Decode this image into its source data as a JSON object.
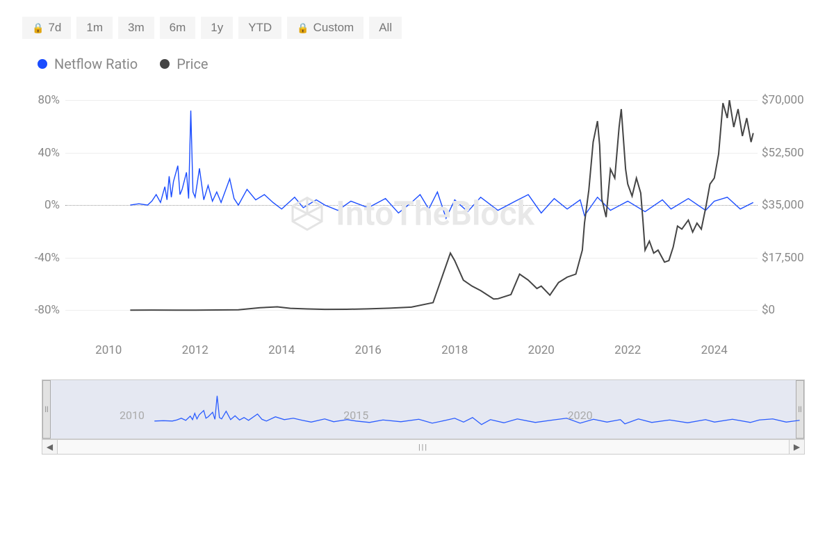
{
  "range_buttons": [
    {
      "label": "7d",
      "locked": true
    },
    {
      "label": "1m",
      "locked": false
    },
    {
      "label": "3m",
      "locked": false
    },
    {
      "label": "6m",
      "locked": false
    },
    {
      "label": "1y",
      "locked": false
    },
    {
      "label": "YTD",
      "locked": false
    },
    {
      "label": "Custom",
      "locked": true
    },
    {
      "label": "All",
      "locked": false
    }
  ],
  "legend": [
    {
      "label": "Netflow Ratio",
      "color": "#1a4cff"
    },
    {
      "label": "Price",
      "color": "#444444"
    }
  ],
  "watermark_text": "IntoTheBlock",
  "chart": {
    "type": "dual-axis-line",
    "background_color": "#ffffff",
    "grid_color": "#eeeeee",
    "zero_line_color": "#999999",
    "x_range": [
      2009,
      2025
    ],
    "x_ticks": [
      2010,
      2012,
      2014,
      2016,
      2018,
      2020,
      2022,
      2024
    ],
    "left_axis": {
      "label_suffix": "%",
      "range": [
        -100,
        80
      ],
      "ticks": [
        -80,
        -40,
        0,
        40,
        80
      ],
      "color": "#888"
    },
    "right_axis": {
      "label_prefix": "$",
      "range": [
        -8750,
        70000
      ],
      "ticks": [
        0,
        17500,
        35000,
        52500,
        70000
      ],
      "color": "#888"
    },
    "series_netflow": {
      "color": "#1a4cff",
      "line_width": 1.4,
      "data": [
        [
          2010.5,
          0
        ],
        [
          2010.7,
          1
        ],
        [
          2010.9,
          0
        ],
        [
          2011.0,
          3
        ],
        [
          2011.1,
          8
        ],
        [
          2011.2,
          2
        ],
        [
          2011.3,
          14
        ],
        [
          2011.35,
          4
        ],
        [
          2011.4,
          22
        ],
        [
          2011.45,
          6
        ],
        [
          2011.5,
          18
        ],
        [
          2011.6,
          30
        ],
        [
          2011.65,
          8
        ],
        [
          2011.7,
          12
        ],
        [
          2011.8,
          25
        ],
        [
          2011.85,
          5
        ],
        [
          2011.9,
          72
        ],
        [
          2011.95,
          10
        ],
        [
          2012.0,
          6
        ],
        [
          2012.1,
          28
        ],
        [
          2012.2,
          4
        ],
        [
          2012.3,
          15
        ],
        [
          2012.4,
          3
        ],
        [
          2012.5,
          10
        ],
        [
          2012.6,
          2
        ],
        [
          2012.8,
          20
        ],
        [
          2012.9,
          5
        ],
        [
          2013.0,
          0
        ],
        [
          2013.2,
          12
        ],
        [
          2013.4,
          4
        ],
        [
          2013.6,
          8
        ],
        [
          2013.8,
          2
        ],
        [
          2014.0,
          -3
        ],
        [
          2014.3,
          6
        ],
        [
          2014.5,
          -2
        ],
        [
          2014.8,
          4
        ],
        [
          2015.0,
          0
        ],
        [
          2015.3,
          -4
        ],
        [
          2015.6,
          3
        ],
        [
          2016.0,
          -2
        ],
        [
          2016.4,
          5
        ],
        [
          2016.7,
          -6
        ],
        [
          2017.0,
          2
        ],
        [
          2017.2,
          8
        ],
        [
          2017.4,
          -3
        ],
        [
          2017.6,
          10
        ],
        [
          2017.8,
          -10
        ],
        [
          2018.0,
          4
        ],
        [
          2018.3,
          -5
        ],
        [
          2018.6,
          6
        ],
        [
          2019.0,
          -4
        ],
        [
          2019.4,
          3
        ],
        [
          2019.7,
          8
        ],
        [
          2020.0,
          -6
        ],
        [
          2020.3,
          5
        ],
        [
          2020.6,
          -3
        ],
        [
          2020.9,
          4
        ],
        [
          2021.0,
          -8
        ],
        [
          2021.3,
          6
        ],
        [
          2021.6,
          -4
        ],
        [
          2022.0,
          3
        ],
        [
          2022.4,
          -5
        ],
        [
          2022.8,
          4
        ],
        [
          2023.0,
          -3
        ],
        [
          2023.4,
          5
        ],
        [
          2023.8,
          -4
        ],
        [
          2024.0,
          3
        ],
        [
          2024.3,
          6
        ],
        [
          2024.6,
          -3
        ],
        [
          2024.9,
          2
        ]
      ]
    },
    "series_price": {
      "color": "#444444",
      "line_width": 2,
      "data": [
        [
          2010.5,
          0
        ],
        [
          2011.0,
          10
        ],
        [
          2012.0,
          5
        ],
        [
          2013.0,
          100
        ],
        [
          2013.5,
          800
        ],
        [
          2013.9,
          1100
        ],
        [
          2014.2,
          600
        ],
        [
          2014.6,
          400
        ],
        [
          2015.0,
          250
        ],
        [
          2015.5,
          280
        ],
        [
          2016.0,
          430
        ],
        [
          2016.5,
          650
        ],
        [
          2017.0,
          1000
        ],
        [
          2017.5,
          2500
        ],
        [
          2017.9,
          19000
        ],
        [
          2018.0,
          16500
        ],
        [
          2018.2,
          10000
        ],
        [
          2018.4,
          8000
        ],
        [
          2018.6,
          6500
        ],
        [
          2018.9,
          3700
        ],
        [
          2019.0,
          3800
        ],
        [
          2019.3,
          5200
        ],
        [
          2019.5,
          12000
        ],
        [
          2019.7,
          10000
        ],
        [
          2019.9,
          7200
        ],
        [
          2020.0,
          8000
        ],
        [
          2020.2,
          5000
        ],
        [
          2020.4,
          9200
        ],
        [
          2020.6,
          11000
        ],
        [
          2020.8,
          12000
        ],
        [
          2020.95,
          20000
        ],
        [
          2021.0,
          29000
        ],
        [
          2021.1,
          40000
        ],
        [
          2021.2,
          56000
        ],
        [
          2021.3,
          63000
        ],
        [
          2021.35,
          55000
        ],
        [
          2021.4,
          37000
        ],
        [
          2021.45,
          34000
        ],
        [
          2021.5,
          31000
        ],
        [
          2021.6,
          47000
        ],
        [
          2021.7,
          44000
        ],
        [
          2021.8,
          61000
        ],
        [
          2021.85,
          67000
        ],
        [
          2021.9,
          57000
        ],
        [
          2021.95,
          47000
        ],
        [
          2022.0,
          42000
        ],
        [
          2022.1,
          38000
        ],
        [
          2022.2,
          44000
        ],
        [
          2022.3,
          39000
        ],
        [
          2022.35,
          30000
        ],
        [
          2022.4,
          20000
        ],
        [
          2022.5,
          23000
        ],
        [
          2022.6,
          19000
        ],
        [
          2022.7,
          20000
        ],
        [
          2022.85,
          16000
        ],
        [
          2022.95,
          16500
        ],
        [
          2023.05,
          21000
        ],
        [
          2023.15,
          28000
        ],
        [
          2023.25,
          27000
        ],
        [
          2023.4,
          30000
        ],
        [
          2023.5,
          26000
        ],
        [
          2023.6,
          29000
        ],
        [
          2023.7,
          27000
        ],
        [
          2023.8,
          34000
        ],
        [
          2023.9,
          42000
        ],
        [
          2024.0,
          44000
        ],
        [
          2024.1,
          52000
        ],
        [
          2024.2,
          69000
        ],
        [
          2024.3,
          64000
        ],
        [
          2024.35,
          70000
        ],
        [
          2024.45,
          61000
        ],
        [
          2024.55,
          67000
        ],
        [
          2024.65,
          58000
        ],
        [
          2024.75,
          64000
        ],
        [
          2024.85,
          56000
        ],
        [
          2024.9,
          59000
        ]
      ]
    }
  },
  "navigator": {
    "x_range": [
      2008,
      2025
    ],
    "labels": [
      2010,
      2015,
      2020
    ],
    "handle_glyph": "||",
    "series_color": "#2a5cff"
  },
  "scrollbar": {
    "left_arrow": "◀",
    "right_arrow": "▶",
    "grip": "|||"
  }
}
